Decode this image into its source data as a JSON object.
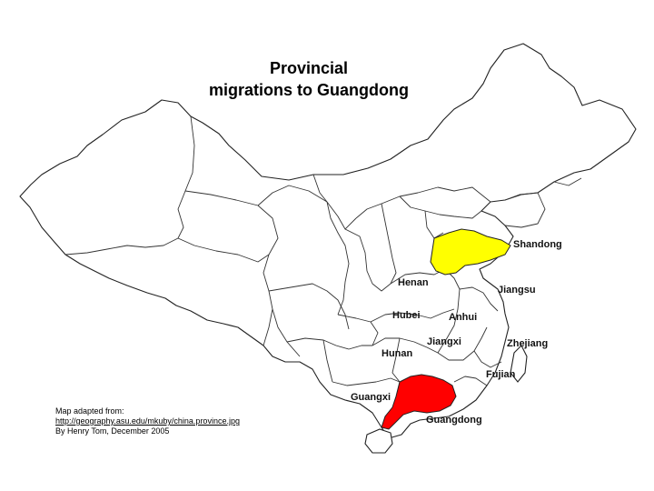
{
  "title": {
    "line1": "Provincial",
    "line2": "migrations to Guangdong"
  },
  "provinces": {
    "shandong": "Shandong",
    "henan": "Henan",
    "jiangsu": "Jiangsu",
    "hubei": "Hubei",
    "anhui": "Anhui",
    "jiangxi": "Jiangxi",
    "zhejiang": "Zhejiang",
    "hunan": "Hunan",
    "fujian": "Fujian",
    "guangxi": "Guangxi",
    "guangdong": "Guangdong"
  },
  "highlight_colors": {
    "destination": "#ff0000",
    "origin": "#ffff00"
  },
  "credit": {
    "line1": "Map adapted from:",
    "link": "http://geography.asu.edu/mkuby/china.province.jpg",
    "line3": "By Henry Tom, December 2005"
  }
}
